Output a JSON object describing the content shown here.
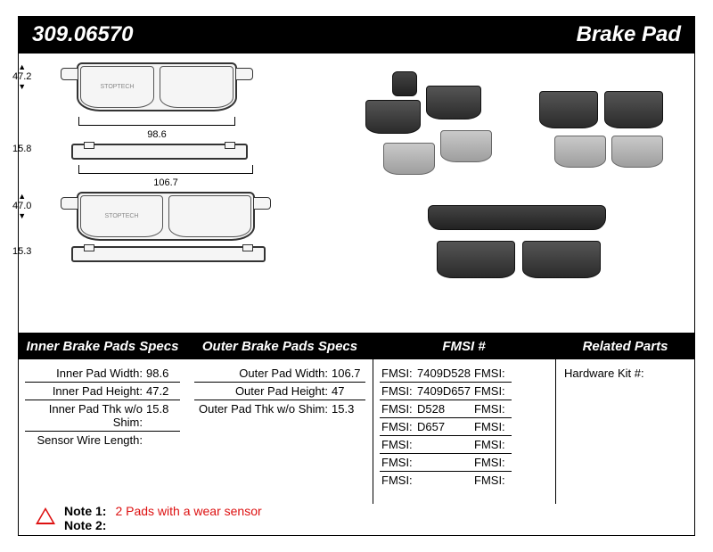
{
  "header": {
    "part_number": "309.06570",
    "product_type": "Brake Pad"
  },
  "diagram": {
    "inner_pad": {
      "height": "47.2",
      "width": "98.6",
      "thickness": "15.8"
    },
    "outer_pad": {
      "height": "47.0",
      "width": "106.7",
      "thickness": "15.3"
    },
    "line_color": "#333333",
    "fill_color": "#f5f5f5",
    "label_fontsize": 11
  },
  "photo": {
    "pad_dark_color": "#2b2b2b",
    "pad_light_color": "#9e9e9e"
  },
  "spec_headers": {
    "inner": "Inner Brake Pads Specs",
    "outer": "Outer Brake Pads Specs",
    "fmsi": "FMSI #",
    "related": "Related Parts"
  },
  "inner_specs": [
    {
      "label": "Inner Pad Width:",
      "value": "98.6"
    },
    {
      "label": "Inner Pad Height:",
      "value": "47.2"
    },
    {
      "label": "Inner Pad Thk w/o Shim:",
      "value": "15.8"
    },
    {
      "label": "Sensor Wire Length:",
      "value": ""
    }
  ],
  "outer_specs": [
    {
      "label": "Outer Pad Width:",
      "value": "106.7"
    },
    {
      "label": "Outer Pad Height:",
      "value": "47"
    },
    {
      "label": "Outer Pad Thk w/o Shim:",
      "value": "15.3"
    }
  ],
  "fmsi_left": [
    {
      "label": "FMSI:",
      "value": "7409D528"
    },
    {
      "label": "FMSI:",
      "value": "7409D657"
    },
    {
      "label": "FMSI:",
      "value": "D528"
    },
    {
      "label": "FMSI:",
      "value": "D657"
    },
    {
      "label": "FMSI:",
      "value": ""
    },
    {
      "label": "FMSI:",
      "value": ""
    },
    {
      "label": "FMSI:",
      "value": ""
    }
  ],
  "fmsi_right": [
    {
      "label": "FMSI:",
      "value": ""
    },
    {
      "label": "FMSI:",
      "value": ""
    },
    {
      "label": "FMSI:",
      "value": ""
    },
    {
      "label": "FMSI:",
      "value": ""
    },
    {
      "label": "FMSI:",
      "value": ""
    },
    {
      "label": "FMSI:",
      "value": ""
    },
    {
      "label": "FMSI:",
      "value": ""
    }
  ],
  "related": {
    "hardware_kit_label": "Hardware Kit #:",
    "hardware_kit_value": ""
  },
  "notes": {
    "note1_label": "Note 1:",
    "note1_text": "2 Pads with a wear sensor",
    "note2_label": "Note 2:",
    "note2_text": "",
    "warn_color": "#d11"
  },
  "colors": {
    "bar_bg": "#000000",
    "bar_text": "#ffffff",
    "page_bg": "#ffffff",
    "rule": "#000000"
  }
}
